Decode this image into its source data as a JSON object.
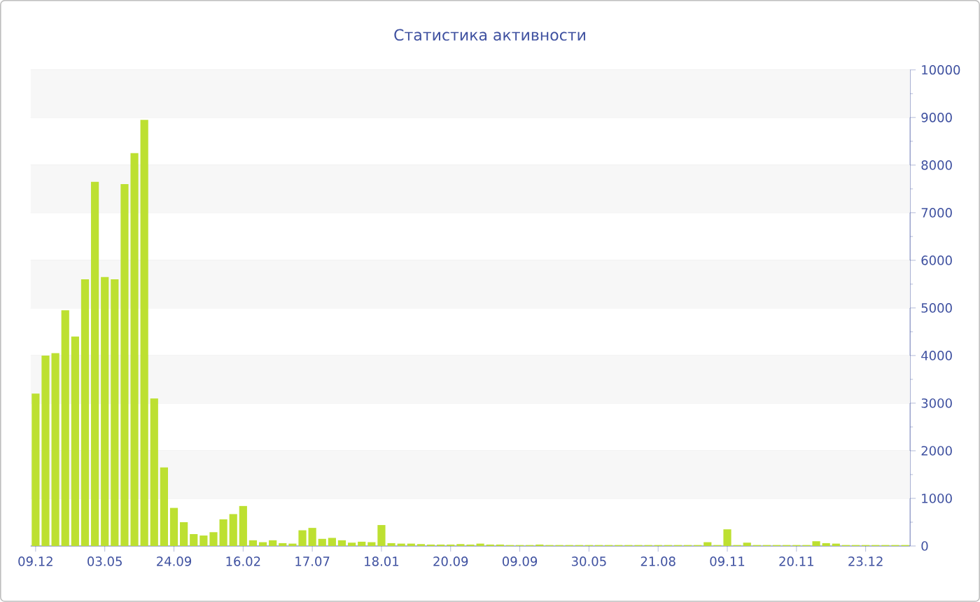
{
  "chart_data": {
    "type": "bar",
    "title": "Статистика активности",
    "categories": [
      "09.12",
      null,
      null,
      null,
      null,
      null,
      null,
      "03.05",
      null,
      null,
      null,
      null,
      null,
      null,
      "24.09",
      null,
      null,
      null,
      null,
      null,
      null,
      "16.02",
      null,
      null,
      null,
      null,
      null,
      null,
      "17.07",
      null,
      null,
      null,
      null,
      null,
      null,
      "18.01",
      null,
      null,
      null,
      null,
      null,
      null,
      "20.09",
      null,
      null,
      null,
      null,
      null,
      null,
      "09.09",
      null,
      null,
      null,
      null,
      null,
      null,
      "30.05",
      null,
      null,
      null,
      null,
      null,
      null,
      "21.08",
      null,
      null,
      null,
      null,
      null,
      null,
      "09.11",
      null,
      null,
      null,
      null,
      null,
      null,
      "20.11",
      null,
      null,
      null,
      null,
      null,
      null,
      "23.12",
      null,
      null,
      null,
      null
    ],
    "values": [
      3200,
      4000,
      4050,
      4950,
      4400,
      5600,
      7650,
      5650,
      5600,
      7600,
      8250,
      8950,
      3100,
      1650,
      800,
      500,
      250,
      220,
      290,
      560,
      670,
      840,
      120,
      80,
      120,
      60,
      50,
      330,
      380,
      150,
      170,
      120,
      70,
      90,
      80,
      440,
      60,
      50,
      50,
      40,
      30,
      30,
      30,
      40,
      30,
      50,
      30,
      30,
      20,
      20,
      20,
      30,
      20,
      20,
      20,
      20,
      20,
      20,
      20,
      20,
      20,
      20,
      20,
      20,
      20,
      20,
      20,
      20,
      80,
      20,
      350,
      20,
      70,
      20,
      20,
      20,
      20,
      20,
      20,
      100,
      60,
      50,
      20,
      20,
      20,
      20,
      20,
      20,
      20
    ],
    "color": "#bde031",
    "ylim": [
      0,
      10000
    ],
    "yticks": [
      0,
      1000,
      2000,
      3000,
      4000,
      5000,
      6000,
      7000,
      8000,
      9000,
      10000
    ],
    "grid": "y"
  }
}
